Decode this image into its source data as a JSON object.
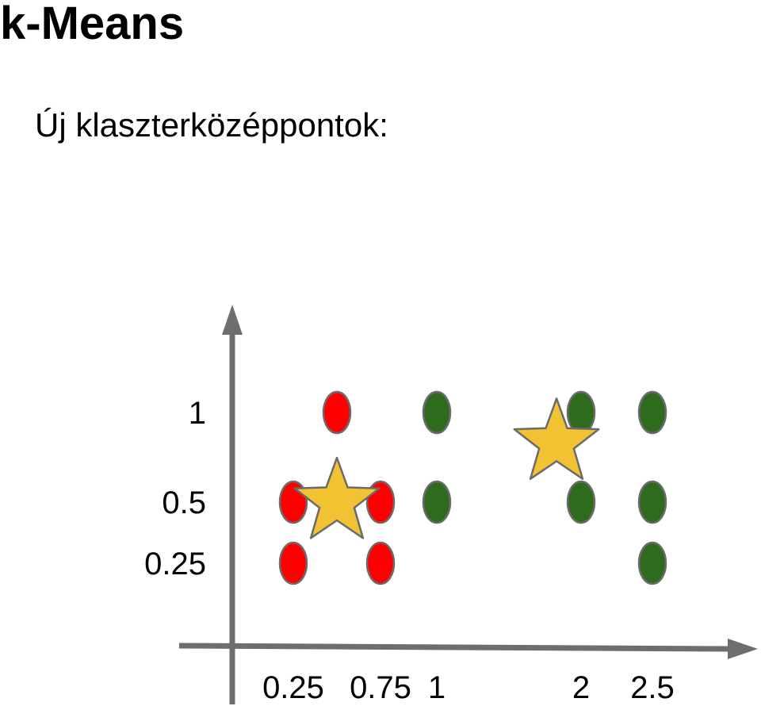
{
  "title": "k-Means",
  "subtitle": "Új klaszterközéppontok:",
  "colors": {
    "axis": "#6e6e6e",
    "cluster_red": "#ff0000",
    "cluster_green": "#2f6b1c",
    "marker_stroke": "#6b6b6b",
    "centroid": "#f1c232"
  },
  "chart_data": {
    "type": "scatter",
    "title": "",
    "xlabel": "",
    "ylabel": "",
    "grid": false,
    "x_ticks": [
      {
        "value": 0.25,
        "label": "0.25"
      },
      {
        "value": 0.75,
        "label": "0.75"
      },
      {
        "value": 1,
        "label": "1"
      },
      {
        "value": 2,
        "label": "2"
      },
      {
        "value": 2.5,
        "label": "2.5"
      }
    ],
    "y_ticks": [
      {
        "value": 0.25,
        "label": "0.25"
      },
      {
        "value": 0.5,
        "label": "0.5"
      },
      {
        "value": 1,
        "label": "1"
      }
    ],
    "series": [
      {
        "marker": "ellipse",
        "color": "#ff0000",
        "points": [
          {
            "x": 0.5,
            "y": 1
          },
          {
            "x": 0.25,
            "y": 0.5
          },
          {
            "x": 0.75,
            "y": 0.5
          },
          {
            "x": 0.25,
            "y": 0.25
          },
          {
            "x": 0.75,
            "y": 0.25
          }
        ]
      },
      {
        "marker": "ellipse",
        "color": "#2f6b1c",
        "points": [
          {
            "x": 1,
            "y": 1
          },
          {
            "x": 1,
            "y": 0.5
          },
          {
            "x": 2,
            "y": 1
          },
          {
            "x": 2.5,
            "y": 1
          },
          {
            "x": 2,
            "y": 0.5
          },
          {
            "x": 2.5,
            "y": 0.5
          },
          {
            "x": 2.5,
            "y": 0.25
          }
        ]
      }
    ],
    "centroids": [
      {
        "x": 0.5,
        "y": 0.5,
        "color": "#f1c232"
      },
      {
        "x": 1.83,
        "y": 0.83,
        "color": "#f1c232"
      }
    ]
  }
}
